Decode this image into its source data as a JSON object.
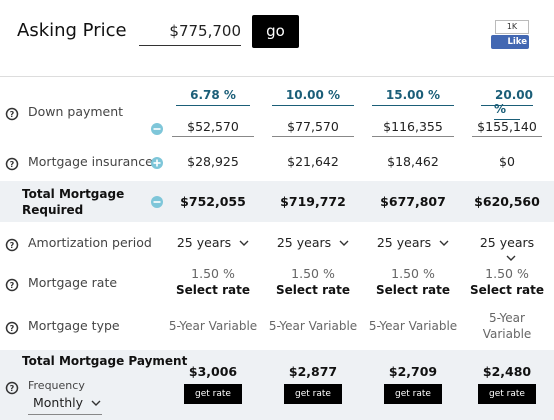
{
  "header": {
    "title": "Asking Price",
    "asking_price": "$775,700",
    "button": "go",
    "like_count": "1K",
    "like_label": "Like"
  },
  "table": {
    "down_payment_percents": [
      "6.78 %",
      "10.00 %",
      "15.00 %",
      "20.00 %"
    ],
    "rows": [
      {
        "label": "Down payment",
        "values": [
          "$52,570",
          "$77,570",
          "$116,355",
          "$155,140"
        ]
      },
      {
        "label": "Mortgage insurance",
        "values": [
          "$28,925",
          "$21,642",
          "$18,462",
          "$0"
        ]
      },
      {
        "label": "Total Mortgage Required",
        "values": [
          "$752,055",
          "$719,772",
          "$677,807",
          "$620,560"
        ]
      },
      {
        "label": "Amortization period",
        "values": [
          "25 years",
          "25 years",
          "25 years",
          "25 years"
        ]
      },
      {
        "label": "Mortgage rate",
        "values": [
          "1.50 %",
          "1.50 %",
          "1.50 %",
          "1.50 %"
        ],
        "links": [
          "Select rate",
          "Select rate",
          "Select rate",
          "Select rate"
        ]
      },
      {
        "label": "Mortgage type",
        "values": [
          "5-Year Variable",
          "5-Year Variable",
          "5-Year Variable",
          "5-Year Variable"
        ]
      }
    ],
    "payment": {
      "label": "Total Mortgage Payment",
      "frequency_label": "Frequency",
      "frequency": "Monthly",
      "values": [
        "$3,006",
        "$2,877",
        "$2,709",
        "$2,480"
      ],
      "buttons": [
        "get rate",
        "get rate",
        "get rate",
        "get rate"
      ]
    }
  }
}
